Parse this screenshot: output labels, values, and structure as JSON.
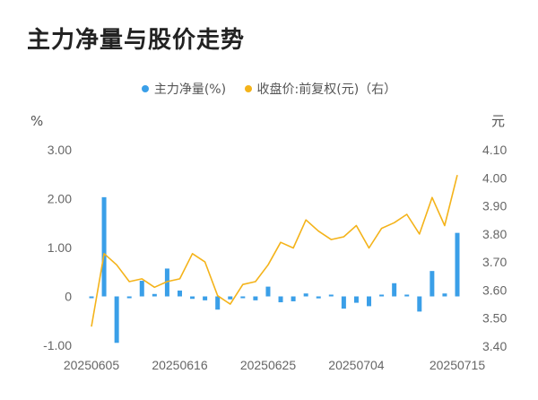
{
  "title": "主力净量与股价走势",
  "chart_data": {
    "type": "bar+line",
    "left_unit": "%",
    "right_unit": "元",
    "left_ylim": [
      -1.0,
      3.0
    ],
    "right_ylim": [
      3.4,
      4.1
    ],
    "left_ticks": [
      "3.00",
      "2.00",
      "1.00",
      "0",
      "-1.00"
    ],
    "left_tick_values": [
      3,
      2,
      1,
      0,
      -1
    ],
    "right_ticks": [
      "4.10",
      "4.00",
      "3.90",
      "3.80",
      "3.70",
      "3.60",
      "3.50",
      "3.40"
    ],
    "right_tick_values": [
      4.1,
      4.0,
      3.9,
      3.8,
      3.7,
      3.6,
      3.5,
      3.4
    ],
    "x_tick_labels": [
      "20250605",
      "20250616",
      "20250625",
      "20250704",
      "20250715"
    ],
    "x_tick_indices": [
      0,
      7,
      14,
      21,
      29
    ],
    "grid": false,
    "legend_position": "top",
    "series": [
      {
        "name": "主力净量(%)",
        "kind": "bar",
        "color": "#3a9fe8",
        "values": [
          -0.02,
          2.03,
          -0.95,
          -0.02,
          0.32,
          0.05,
          0.57,
          0.12,
          -0.05,
          -0.08,
          -0.27,
          -0.06,
          -0.03,
          -0.08,
          0.2,
          -0.12,
          -0.1,
          0.06,
          -0.04,
          0.03,
          -0.25,
          -0.13,
          -0.2,
          0.03,
          0.27,
          0.01,
          -0.31,
          0.52,
          0.06,
          1.3
        ]
      },
      {
        "name": "收盘价:前复权(元)（右）",
        "kind": "line",
        "color": "#f4b31a",
        "values": [
          3.47,
          3.73,
          3.69,
          3.63,
          3.64,
          3.61,
          3.63,
          3.64,
          3.73,
          3.7,
          3.58,
          3.55,
          3.62,
          3.63,
          3.69,
          3.77,
          3.75,
          3.85,
          3.81,
          3.78,
          3.79,
          3.83,
          3.75,
          3.82,
          3.84,
          3.87,
          3.8,
          3.93,
          3.83,
          4.01
        ]
      }
    ]
  }
}
